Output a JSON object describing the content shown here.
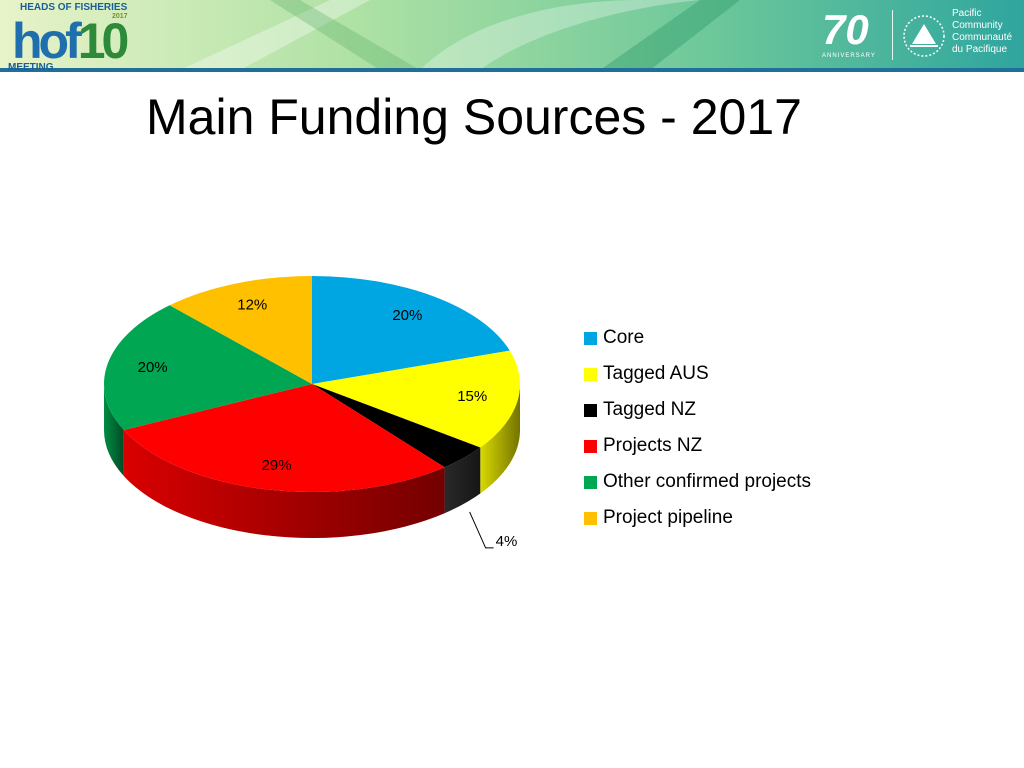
{
  "header": {
    "logo_left": {
      "heads": "HEADS OF FISHERIES",
      "year": "2017",
      "mark_a": "hof",
      "mark_b": "10",
      "meeting": "MEETING"
    },
    "logo_right": {
      "seventy": "70",
      "anniversary": "ANNIVERSARY",
      "org_line1": "Pacific",
      "org_line2": "Community",
      "org_line3": "Communauté",
      "org_line4": "du Pacifique"
    }
  },
  "slide": {
    "title": "Main Funding Sources - 2017"
  },
  "chart_data": {
    "type": "pie",
    "title": "",
    "style": "3d",
    "legend_position": "right",
    "slices": [
      {
        "name": "Core",
        "value": 20,
        "label": "20%",
        "color": "#00a6e2"
      },
      {
        "name": "Tagged AUS",
        "value": 15,
        "label": "15%",
        "color": "#ffff00"
      },
      {
        "name": "Tagged NZ",
        "value": 4,
        "label": "4%",
        "color": "#000000"
      },
      {
        "name": "Projects NZ",
        "value": 29,
        "label": "29%",
        "color": "#ff0000"
      },
      {
        "name": "Other confirmed projects",
        "value": 20,
        "label": "20%",
        "color": "#00a651"
      },
      {
        "name": "Project pipeline",
        "value": 12,
        "label": "12%",
        "color": "#ffc000"
      }
    ]
  }
}
